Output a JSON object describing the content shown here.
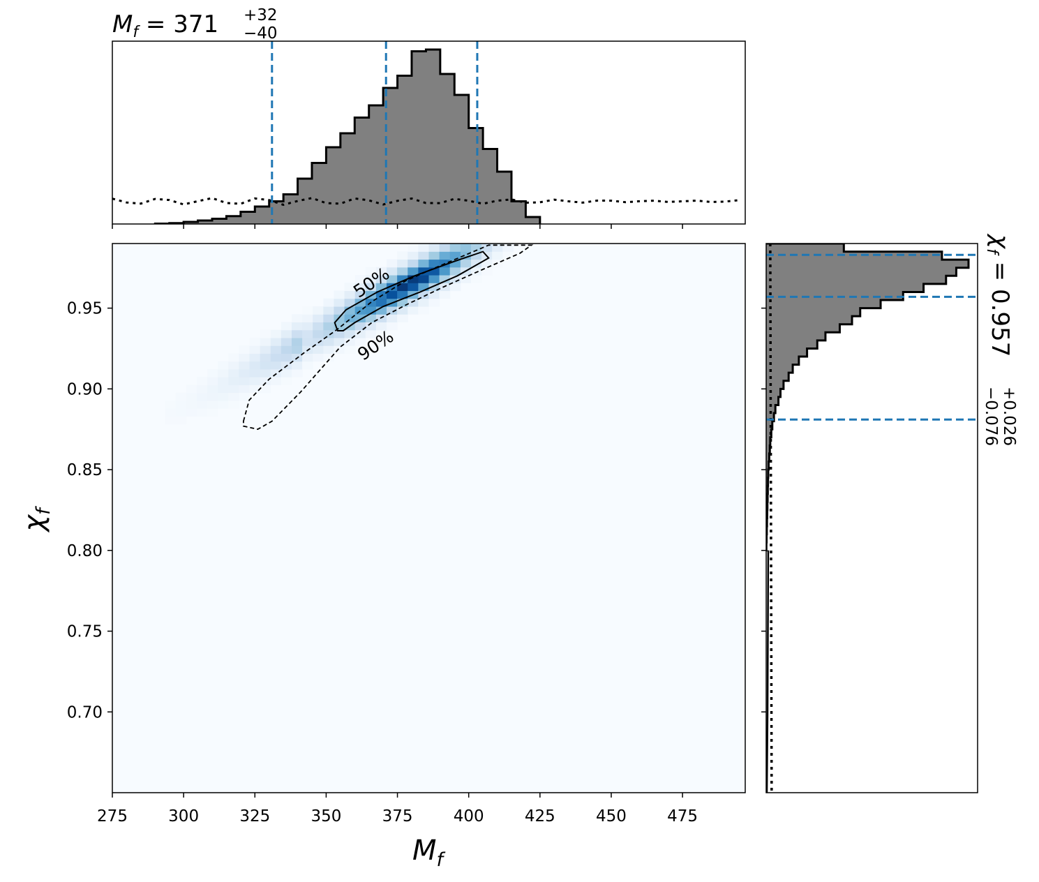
{
  "chart_data": [
    {
      "type": "heatmap",
      "panel": "joint",
      "xlabel": "M",
      "xlabel_sub": "f",
      "ylabel": "χ",
      "ylabel_sub": "f",
      "xlim": [
        275,
        497
      ],
      "ylim": [
        0.65,
        0.99
      ],
      "xticks": [
        "275",
        "300",
        "325",
        "350",
        "375",
        "400",
        "425",
        "450",
        "475"
      ],
      "yticks": [
        "0.70",
        "0.75",
        "0.80",
        "0.85",
        "0.90",
        "0.95"
      ],
      "colormap": "Blues",
      "density_peak": {
        "x": 381,
        "y": 0.967
      },
      "contours": [
        {
          "label": "50%",
          "style": "solid",
          "points": [
            [
              354,
              0.936
            ],
            [
              353,
              0.941
            ],
            [
              357,
              0.949
            ],
            [
              368,
              0.96
            ],
            [
              381,
              0.97
            ],
            [
              395,
              0.979
            ],
            [
              405,
              0.985
            ],
            [
              407,
              0.981
            ],
            [
              396,
              0.97
            ],
            [
              383,
              0.96
            ],
            [
              370,
              0.951
            ],
            [
              360,
              0.941
            ],
            [
              356,
              0.936
            ]
          ]
        },
        {
          "label": "90%",
          "style": "dashed",
          "points": [
            [
              321,
              0.88
            ],
            [
              323,
              0.893
            ],
            [
              330,
              0.906
            ],
            [
              342,
              0.922
            ],
            [
              354,
              0.937
            ],
            [
              366,
              0.954
            ],
            [
              378,
              0.967
            ],
            [
              387,
              0.974
            ],
            [
              395,
              0.98
            ],
            [
              407,
              0.989
            ],
            [
              422,
              0.989
            ],
            [
              418,
              0.984
            ],
            [
              405,
              0.974
            ],
            [
              391,
              0.963
            ],
            [
              378,
              0.952
            ],
            [
              366,
              0.941
            ],
            [
              355,
              0.926
            ],
            [
              341,
              0.898
            ],
            [
              331,
              0.88
            ],
            [
              326,
              0.875
            ],
            [
              321,
              0.877
            ]
          ]
        }
      ]
    },
    {
      "type": "bar",
      "panel": "top-marginal",
      "title_symbol": "M",
      "title_sub": "f",
      "title_value": "371",
      "title_plus": "+32",
      "title_minus": "−40",
      "bin_width": 5,
      "bin_starts": [
        290,
        295,
        300,
        305,
        310,
        315,
        320,
        325,
        330,
        335,
        340,
        345,
        350,
        355,
        360,
        365,
        370,
        375,
        380,
        385,
        390,
        395,
        400,
        405,
        410,
        415,
        420
      ],
      "values": [
        0.002,
        0.005,
        0.012,
        0.02,
        0.03,
        0.045,
        0.07,
        0.1,
        0.13,
        0.17,
        0.26,
        0.35,
        0.44,
        0.52,
        0.61,
        0.68,
        0.78,
        0.85,
        0.99,
        1.0,
        0.86,
        0.74,
        0.55,
        0.43,
        0.3,
        0.13,
        0.04
      ],
      "prior_level": 0.13,
      "quantile_lines": [
        331,
        371,
        403
      ]
    },
    {
      "type": "bar",
      "panel": "right-marginal",
      "title_symbol": "χ",
      "title_sub": "f",
      "title_value": "0.957",
      "title_plus": "+0.026",
      "title_minus": "−0.076",
      "bin_width": 0.005,
      "bin_starts": [
        0.985,
        0.98,
        0.975,
        0.97,
        0.965,
        0.96,
        0.955,
        0.95,
        0.945,
        0.94,
        0.935,
        0.93,
        0.925,
        0.92,
        0.915,
        0.91,
        0.905,
        0.9,
        0.895,
        0.89,
        0.885,
        0.88,
        0.875,
        0.87,
        0.865,
        0.86,
        0.855,
        0.85,
        0.845,
        0.84,
        0.835,
        0.83,
        0.825,
        0.82,
        0.815,
        0.81,
        0.805,
        0.8
      ],
      "values": [
        0.38,
        0.86,
        0.99,
        0.93,
        0.88,
        0.77,
        0.67,
        0.56,
        0.46,
        0.42,
        0.36,
        0.29,
        0.25,
        0.2,
        0.16,
        0.13,
        0.11,
        0.085,
        0.07,
        0.06,
        0.045,
        0.038,
        0.03,
        0.025,
        0.02,
        0.018,
        0.015,
        0.012,
        0.01,
        0.009,
        0.008,
        0.007,
        0.006,
        0.005,
        0.004,
        0.003,
        0.002,
        0.001
      ],
      "prior_level": 0.02,
      "quantile_lines": [
        0.881,
        0.957,
        0.983
      ]
    }
  ]
}
